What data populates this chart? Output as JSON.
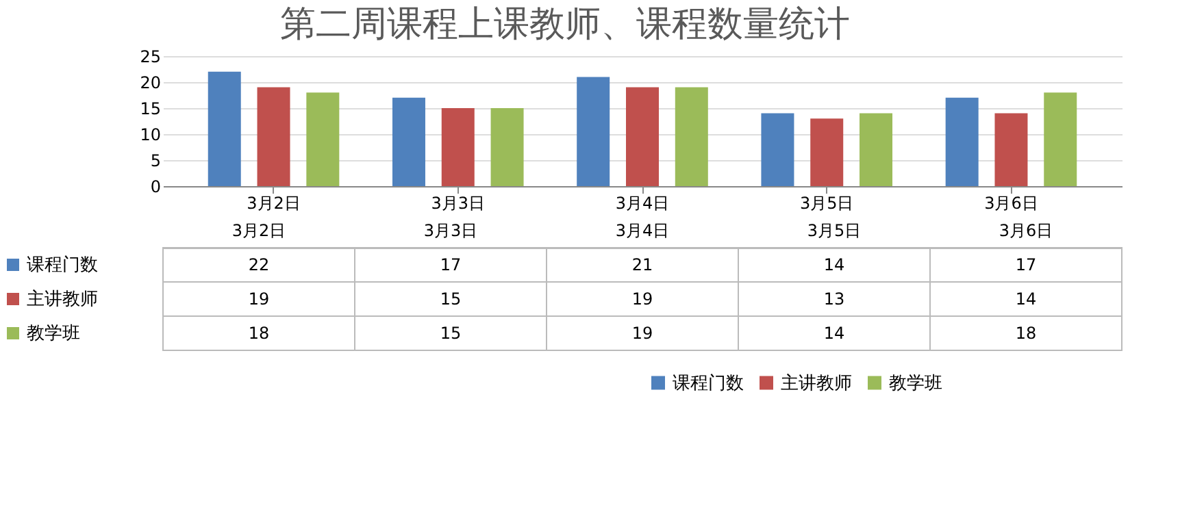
{
  "chart_data": {
    "type": "bar",
    "title": "第二周课程上课教师、课程数量统计",
    "categories": [
      "3月2日",
      "3月3日",
      "3月4日",
      "3月5日",
      "3月6日"
    ],
    "series": [
      {
        "name": "课程门数",
        "color": "#4f81bd",
        "values": [
          22,
          17,
          21,
          14,
          17
        ]
      },
      {
        "name": "主讲教师",
        "color": "#c0504d",
        "values": [
          19,
          15,
          19,
          13,
          14
        ]
      },
      {
        "name": "教学班",
        "color": "#9bbb59",
        "values": [
          18,
          15,
          19,
          14,
          18
        ]
      }
    ],
    "ylim": [
      0,
      25
    ],
    "yticks": [
      0,
      5,
      10,
      15,
      20,
      25
    ],
    "grid": "y",
    "legend": "bottom",
    "data_labels": true
  }
}
